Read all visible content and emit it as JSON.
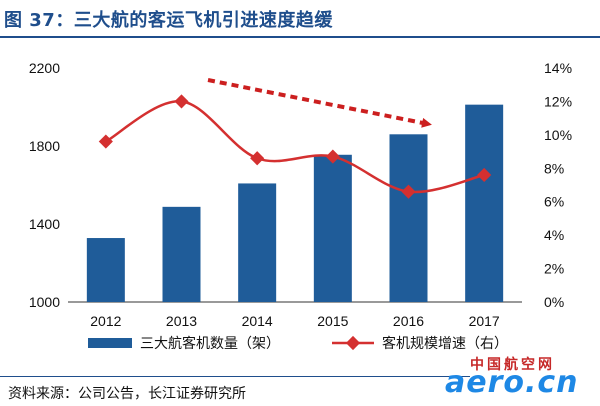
{
  "title": "图 37：三大航的客运飞机引进速度趋缓",
  "source": "资料来源：公司公告，长江证券研究所",
  "watermark": {
    "cn": "中国航空网",
    "en": "aero.cn"
  },
  "colors": {
    "bar": "#1f5c99",
    "line": "#d43030",
    "title": "#1f4e8c",
    "arrow": "#cc1f1f",
    "watermark_blue": "#1e88e5"
  },
  "chart_data": {
    "type": "bar",
    "categories": [
      "2012",
      "2013",
      "2014",
      "2015",
      "2016",
      "2017"
    ],
    "series": [
      {
        "name": "三大航客机数量（架）",
        "type": "bar",
        "axis": "left",
        "values": [
          1328,
          1488,
          1608,
          1755,
          1860,
          2012
        ]
      },
      {
        "name": "客机规模增速（右）",
        "type": "line",
        "axis": "right",
        "values": [
          9.6,
          12.0,
          8.6,
          8.7,
          6.6,
          7.6
        ]
      }
    ],
    "left_axis": {
      "min": 1000,
      "max": 2200,
      "ticks": [
        1000,
        1400,
        1800,
        2200
      ]
    },
    "right_axis": {
      "min": 0,
      "max": 14,
      "ticks": [
        "0%",
        "2%",
        "4%",
        "6%",
        "8%",
        "10%",
        "12%",
        "14%"
      ]
    },
    "legend_position": "bottom",
    "annotation": "dashed red arrow trending downward"
  }
}
